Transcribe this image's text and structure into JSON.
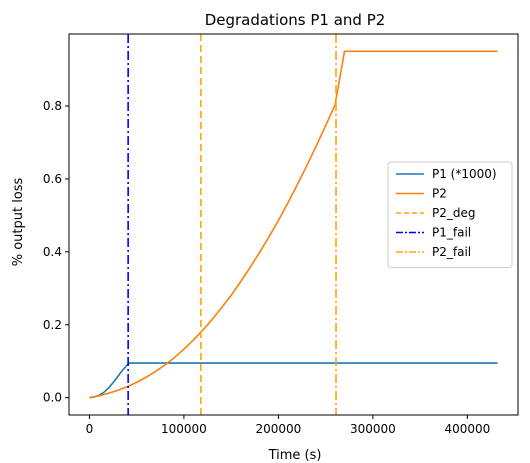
{
  "chart_data": {
    "type": "line",
    "title": "Degradations P1 and P2",
    "xlabel": "Time (s)",
    "ylabel": "% output loss",
    "xlim": [
      -21600,
      453600
    ],
    "ylim": [
      -0.0475,
      0.9975
    ],
    "xticks": [
      0,
      100000,
      200000,
      300000,
      400000
    ],
    "xtick_labels": [
      "0",
      "100000",
      "200000",
      "300000",
      "400000"
    ],
    "yticks": [
      0.0,
      0.2,
      0.4,
      0.6,
      0.8
    ],
    "ytick_labels": [
      "0.0",
      "0.2",
      "0.4",
      "0.6",
      "0.8"
    ],
    "grid": false,
    "legend_position": "center-right",
    "series": [
      {
        "name": "P1 (*1000)",
        "style": "solid",
        "color": "#1f77b4",
        "x": [
          0,
          5000,
          10000,
          15000,
          20000,
          25000,
          30000,
          35000,
          40000,
          42000,
          100000,
          200000,
          300000,
          432000
        ],
        "y": [
          0.0,
          0.002,
          0.006,
          0.014,
          0.026,
          0.041,
          0.058,
          0.075,
          0.09,
          0.095,
          0.095,
          0.095,
          0.095,
          0.095
        ]
      },
      {
        "name": "P2",
        "style": "solid",
        "color": "#ff7f0e",
        "x": [
          0,
          10000,
          20000,
          30000,
          40000,
          50000,
          60000,
          70000,
          80000,
          90000,
          100000,
          110000,
          120000,
          130000,
          140000,
          150000,
          160000,
          170000,
          180000,
          190000,
          200000,
          210000,
          220000,
          230000,
          240000,
          250000,
          260000,
          270000,
          300000,
          350000,
          400000,
          432000
        ],
        "y": [
          0.0,
          0.005,
          0.012,
          0.02,
          0.03,
          0.042,
          0.056,
          0.072,
          0.09,
          0.11,
          0.133,
          0.158,
          0.185,
          0.215,
          0.247,
          0.281,
          0.318,
          0.357,
          0.398,
          0.441,
          0.486,
          0.534,
          0.584,
          0.636,
          0.69,
          0.746,
          0.803,
          0.95,
          0.95,
          0.95,
          0.95,
          0.95
        ]
      },
      {
        "name": "P2_deg",
        "style": "dashed",
        "color": "#ffa500",
        "vline_x": 118000
      },
      {
        "name": "P1_fail",
        "style": "dashdot",
        "color": "#0000ff",
        "vline_x": 41000
      },
      {
        "name": "P2_fail",
        "style": "dashdot",
        "color": "#ffa500",
        "vline_x": 261000
      }
    ]
  }
}
